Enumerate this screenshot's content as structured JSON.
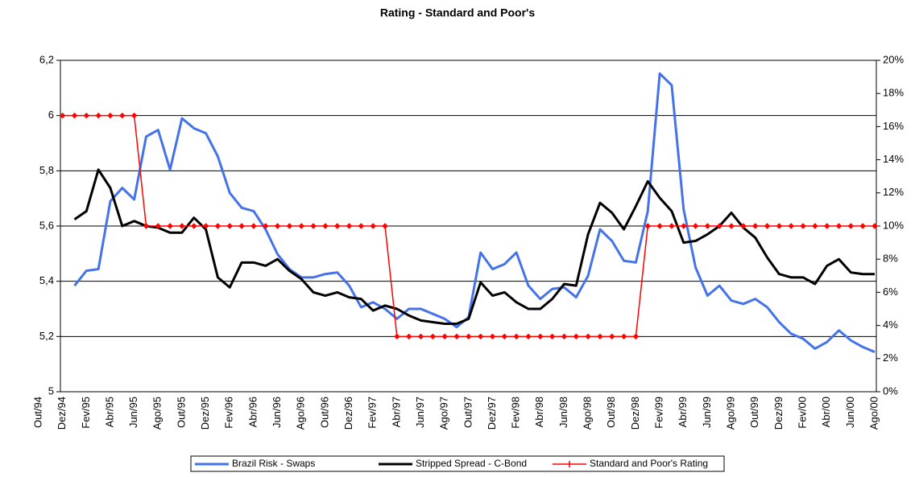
{
  "chart_data": {
    "type": "line",
    "title": "Rating - Standard and Poor's",
    "categories": [
      "Out/94",
      null,
      "Dez/94",
      null,
      "Fev/95",
      null,
      "Abr/95",
      null,
      "Jun/95",
      null,
      "Ago/95",
      null,
      "Out/95",
      null,
      "Dez/95",
      null,
      "Fev/96",
      null,
      "Abr/96",
      null,
      "Jun/96",
      null,
      "Ago/96",
      null,
      "Out/96",
      null,
      "Dez/96",
      null,
      "Fev/97",
      null,
      "Abr/97",
      null,
      "Jun/97",
      null,
      "Ago/97",
      null,
      "Out/97",
      null,
      "Dez/97",
      null,
      "Fev/98",
      null,
      "Abr/98",
      null,
      "Jun/98",
      null,
      "Ago/98",
      null,
      "Out/98",
      null,
      "Dez/98",
      null,
      "Fev/99",
      null,
      "Abr/99",
      null,
      "Jun/99",
      null,
      "Ago/99",
      null,
      "Out/99",
      null,
      "Dez/99",
      null,
      "Fev/00",
      null,
      "Abr/00",
      null,
      "Jun/00",
      null,
      "Ago/00"
    ],
    "series": [
      {
        "name": "Brazil Risk - Swaps",
        "color": "#4472e8",
        "axis": "y2",
        "values": [
          null,
          null,
          null,
          6.4,
          7.3,
          7.4,
          11.5,
          12.3,
          11.6,
          15.4,
          15.8,
          13.4,
          16.5,
          15.9,
          15.6,
          14.2,
          12.0,
          11.1,
          10.9,
          9.8,
          8.3,
          7.4,
          6.9,
          6.9,
          7.1,
          7.2,
          6.4,
          5.1,
          5.4,
          5.0,
          4.4,
          5.0,
          5.0,
          4.7,
          4.4,
          3.9,
          4.5,
          8.4,
          7.4,
          7.7,
          8.4,
          6.4,
          5.6,
          6.2,
          6.3,
          5.7,
          7.0,
          9.8,
          9.1,
          7.9,
          7.8,
          10.9,
          19.2,
          18.5,
          11.0,
          7.5,
          5.8,
          6.4,
          5.5,
          5.3,
          5.6,
          5.1,
          4.2,
          3.5,
          3.2,
          2.6,
          3.0,
          3.7,
          3.1,
          2.7,
          2.4
        ]
      },
      {
        "name": "Stripped Spread - C-Bond",
        "color": "#000000",
        "axis": "y2",
        "values": [
          null,
          null,
          null,
          10.4,
          10.9,
          13.4,
          12.3,
          10.0,
          10.3,
          10.0,
          9.9,
          9.6,
          9.6,
          10.5,
          9.8,
          6.9,
          6.3,
          7.8,
          7.8,
          7.6,
          8.0,
          7.3,
          6.8,
          6.0,
          5.8,
          6.0,
          5.7,
          5.6,
          4.9,
          5.2,
          5.0,
          4.6,
          4.3,
          4.2,
          4.1,
          4.1,
          4.4,
          6.6,
          5.8,
          6.0,
          5.4,
          5.0,
          5.0,
          5.6,
          6.5,
          6.4,
          9.5,
          11.4,
          10.8,
          9.8,
          11.2,
          12.7,
          11.7,
          10.9,
          9.0,
          9.1,
          9.5,
          10.0,
          10.8,
          9.9,
          9.3,
          8.1,
          7.1,
          6.9,
          6.9,
          6.5,
          7.6,
          8.0,
          7.2,
          7.1,
          7.1
        ]
      },
      {
        "name": "Standard and Poor's Rating",
        "color": "#ff0000",
        "values": [
          null,
          null,
          6,
          6,
          6,
          6,
          6,
          6,
          6,
          5.6,
          5.6,
          5.6,
          5.6,
          5.6,
          5.6,
          5.6,
          5.6,
          5.6,
          5.6,
          5.6,
          5.6,
          5.6,
          5.6,
          5.6,
          5.6,
          5.6,
          5.6,
          5.6,
          5.6,
          5.6,
          5.2,
          5.2,
          5.2,
          5.2,
          5.2,
          5.2,
          5.2,
          5.2,
          5.2,
          5.2,
          5.2,
          5.2,
          5.2,
          5.2,
          5.2,
          5.2,
          5.2,
          5.2,
          5.2,
          5.2,
          5.2,
          5.6,
          5.6,
          5.6,
          5.6,
          5.6,
          5.6,
          5.6,
          5.6,
          5.6,
          5.6,
          5.6,
          5.6,
          5.6,
          5.6,
          5.6,
          5.6,
          5.6,
          5.6,
          5.6,
          5.6
        ]
      }
    ],
    "ylim": [
      5,
      6.2
    ],
    "yticks": [
      5,
      {
        "value": 5.2,
        "label": "5,2"
      },
      {
        "value": 5.4,
        "label": "5,4"
      },
      {
        "value": 5.6,
        "label": "5,6"
      },
      {
        "value": 5.8,
        "label": "5,8"
      },
      6,
      {
        "value": 6.2,
        "label": "6,2"
      }
    ],
    "y2lim": [
      0,
      20
    ],
    "y2ticks": [
      {
        "value": 0,
        "label": "0%"
      },
      {
        "value": 2,
        "label": "2%"
      },
      {
        "value": 4,
        "label": "4%"
      },
      {
        "value": 6,
        "label": "6%"
      },
      {
        "value": 8,
        "label": "8%"
      },
      {
        "value": 10,
        "label": "10%"
      },
      {
        "value": 12,
        "label": "12%"
      },
      {
        "value": 14,
        "label": "14%"
      },
      {
        "value": 16,
        "label": "16%"
      },
      {
        "value": 18,
        "label": "18%"
      },
      {
        "value": 20,
        "label": "20%"
      }
    ],
    "grid": true,
    "legend": "bottom"
  }
}
